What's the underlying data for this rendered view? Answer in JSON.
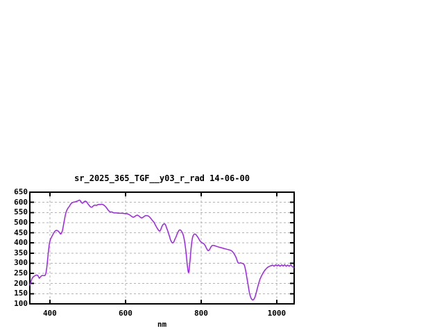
{
  "window": {
    "background": "#ffffff"
  },
  "chart_data": {
    "type": "line",
    "title": "sr_2025_365_TGF__y03_r_rad 14-06-00",
    "xlabel": "nm",
    "ylabel": "",
    "legend": "none",
    "grid": true,
    "xlim": [
      347,
      1046
    ],
    "ylim": [
      100,
      650
    ],
    "x_ticks": [
      400,
      600,
      800,
      1000
    ],
    "y_ticks": [
      100,
      150,
      200,
      250,
      300,
      350,
      400,
      450,
      500,
      550,
      600,
      650
    ],
    "line_color": "#a020f0",
    "grid_color": "#b3b3b3",
    "border_color": "#000000",
    "series": [
      {
        "name": "radiance-spectrum",
        "points": [
          [
            347,
            193
          ],
          [
            349,
            203
          ],
          [
            351,
            216
          ],
          [
            353,
            226
          ],
          [
            356,
            233
          ],
          [
            359,
            237
          ],
          [
            362,
            240
          ],
          [
            365,
            242
          ],
          [
            368,
            240
          ],
          [
            370,
            234
          ],
          [
            372,
            226
          ],
          [
            374,
            230
          ],
          [
            377,
            237
          ],
          [
            380,
            240
          ],
          [
            383,
            239
          ],
          [
            386,
            239
          ],
          [
            388,
            242
          ],
          [
            390,
            255
          ],
          [
            392,
            280
          ],
          [
            394,
            318
          ],
          [
            396,
            355
          ],
          [
            398,
            388
          ],
          [
            400,
            408
          ],
          [
            402,
            420
          ],
          [
            405,
            431
          ],
          [
            408,
            441
          ],
          [
            411,
            452
          ],
          [
            414,
            459
          ],
          [
            417,
            462
          ],
          [
            420,
            461
          ],
          [
            423,
            457
          ],
          [
            426,
            449
          ],
          [
            428,
            444
          ],
          [
            430,
            446
          ],
          [
            433,
            459
          ],
          [
            435,
            478
          ],
          [
            437,
            500
          ],
          [
            439,
            517
          ],
          [
            441,
            538
          ],
          [
            443,
            552
          ],
          [
            445,
            562
          ],
          [
            448,
            572
          ],
          [
            451,
            579
          ],
          [
            454,
            588
          ],
          [
            457,
            596
          ],
          [
            460,
            599
          ],
          [
            463,
            601
          ],
          [
            466,
            602
          ],
          [
            469,
            604
          ],
          [
            472,
            606
          ],
          [
            475,
            608
          ],
          [
            478,
            611
          ],
          [
            480,
            609
          ],
          [
            482,
            604
          ],
          [
            484,
            598
          ],
          [
            486,
            595
          ],
          [
            489,
            600
          ],
          [
            492,
            605
          ],
          [
            494,
            606
          ],
          [
            497,
            603
          ],
          [
            500,
            594
          ],
          [
            503,
            587
          ],
          [
            506,
            580
          ],
          [
            509,
            576
          ],
          [
            512,
            577
          ],
          [
            515,
            583
          ],
          [
            518,
            586
          ],
          [
            521,
            586
          ],
          [
            524,
            585
          ],
          [
            527,
            589
          ],
          [
            530,
            590
          ],
          [
            533,
            589
          ],
          [
            536,
            591
          ],
          [
            539,
            590
          ],
          [
            542,
            587
          ],
          [
            545,
            583
          ],
          [
            548,
            577
          ],
          [
            551,
            570
          ],
          [
            554,
            562
          ],
          [
            557,
            556
          ],
          [
            560,
            552
          ],
          [
            563,
            553
          ],
          [
            566,
            551
          ],
          [
            569,
            548
          ],
          [
            572,
            548
          ],
          [
            576,
            548
          ],
          [
            580,
            547
          ],
          [
            584,
            546
          ],
          [
            588,
            546
          ],
          [
            592,
            546
          ],
          [
            596,
            545
          ],
          [
            600,
            545
          ],
          [
            604,
            544
          ],
          [
            608,
            541
          ],
          [
            612,
            537
          ],
          [
            616,
            531
          ],
          [
            619,
            527
          ],
          [
            622,
            527
          ],
          [
            625,
            531
          ],
          [
            628,
            535
          ],
          [
            631,
            537
          ],
          [
            634,
            535
          ],
          [
            637,
            530
          ],
          [
            640,
            525
          ],
          [
            643,
            523
          ],
          [
            646,
            526
          ],
          [
            649,
            530
          ],
          [
            652,
            534
          ],
          [
            655,
            535
          ],
          [
            658,
            534
          ],
          [
            661,
            532
          ],
          [
            664,
            527
          ],
          [
            667,
            521
          ],
          [
            670,
            513
          ],
          [
            673,
            507
          ],
          [
            676,
            500
          ],
          [
            679,
            488
          ],
          [
            682,
            478
          ],
          [
            685,
            469
          ],
          [
            688,
            461
          ],
          [
            691,
            458
          ],
          [
            693,
            465
          ],
          [
            695,
            475
          ],
          [
            697,
            484
          ],
          [
            699,
            490
          ],
          [
            701,
            493
          ],
          [
            703,
            495
          ],
          [
            705,
            492
          ],
          [
            707,
            484
          ],
          [
            709,
            472
          ],
          [
            711,
            463
          ],
          [
            713,
            452
          ],
          [
            715,
            440
          ],
          [
            717,
            428
          ],
          [
            719,
            415
          ],
          [
            721,
            407
          ],
          [
            723,
            402
          ],
          [
            725,
            400
          ],
          [
            727,
            403
          ],
          [
            729,
            410
          ],
          [
            731,
            420
          ],
          [
            733,
            427
          ],
          [
            735,
            437
          ],
          [
            737,
            446
          ],
          [
            739,
            455
          ],
          [
            741,
            461
          ],
          [
            743,
            464
          ],
          [
            745,
            464
          ],
          [
            747,
            461
          ],
          [
            749,
            455
          ],
          [
            751,
            448
          ],
          [
            753,
            437
          ],
          [
            755,
            420
          ],
          [
            757,
            398
          ],
          [
            759,
            370
          ],
          [
            761,
            335
          ],
          [
            763,
            298
          ],
          [
            765,
            268
          ],
          [
            766,
            256
          ],
          [
            767,
            254
          ],
          [
            768,
            262
          ],
          [
            769,
            280
          ],
          [
            771,
            320
          ],
          [
            773,
            365
          ],
          [
            775,
            402
          ],
          [
            777,
            425
          ],
          [
            779,
            437
          ],
          [
            781,
            442
          ],
          [
            783,
            444
          ],
          [
            785,
            443
          ],
          [
            787,
            440
          ],
          [
            789,
            434
          ],
          [
            791,
            429
          ],
          [
            793,
            423
          ],
          [
            795,
            416
          ],
          [
            797,
            410
          ],
          [
            799,
            406
          ],
          [
            801,
            403
          ],
          [
            803,
            400
          ],
          [
            805,
            399
          ],
          [
            807,
            396
          ],
          [
            809,
            392
          ],
          [
            811,
            386
          ],
          [
            813,
            378
          ],
          [
            815,
            371
          ],
          [
            817,
            364
          ],
          [
            819,
            362
          ],
          [
            821,
            364
          ],
          [
            823,
            370
          ],
          [
            825,
            377
          ],
          [
            827,
            383
          ],
          [
            829,
            387
          ],
          [
            831,
            388
          ],
          [
            833,
            388
          ],
          [
            835,
            387
          ],
          [
            838,
            385
          ],
          [
            841,
            383
          ],
          [
            844,
            381
          ],
          [
            848,
            379
          ],
          [
            852,
            377
          ],
          [
            856,
            375
          ],
          [
            860,
            373
          ],
          [
            864,
            371
          ],
          [
            868,
            369
          ],
          [
            872,
            367
          ],
          [
            876,
            365
          ],
          [
            880,
            362
          ],
          [
            883,
            357
          ],
          [
            886,
            350
          ],
          [
            889,
            341
          ],
          [
            892,
            330
          ],
          [
            894,
            320
          ],
          [
            896,
            309
          ],
          [
            898,
            302
          ],
          [
            900,
            300
          ],
          [
            902,
            301
          ],
          [
            904,
            302
          ],
          [
            906,
            301
          ],
          [
            908,
            300
          ],
          [
            910,
            299
          ],
          [
            912,
            296
          ],
          [
            914,
            292
          ],
          [
            916,
            280
          ],
          [
            918,
            262
          ],
          [
            920,
            240
          ],
          [
            922,
            218
          ],
          [
            924,
            196
          ],
          [
            926,
            172
          ],
          [
            928,
            152
          ],
          [
            930,
            138
          ],
          [
            932,
            128
          ],
          [
            934,
            122
          ],
          [
            936,
            119
          ],
          [
            938,
            120
          ],
          [
            940,
            124
          ],
          [
            942,
            131
          ],
          [
            944,
            143
          ],
          [
            946,
            157
          ],
          [
            948,
            172
          ],
          [
            950,
            186
          ],
          [
            952,
            200
          ],
          [
            954,
            212
          ],
          [
            956,
            223
          ],
          [
            958,
            231
          ],
          [
            960,
            239
          ],
          [
            962,
            246
          ],
          [
            964,
            253
          ],
          [
            966,
            259
          ],
          [
            968,
            264
          ],
          [
            970,
            269
          ],
          [
            972,
            273
          ],
          [
            974,
            277
          ],
          [
            976,
            280
          ],
          [
            978,
            282
          ],
          [
            980,
            284
          ],
          [
            982,
            286
          ],
          [
            984,
            288
          ],
          [
            985,
            287
          ],
          [
            987,
            290
          ],
          [
            989,
            291
          ],
          [
            991,
            288
          ],
          [
            993,
            285
          ],
          [
            995,
            289
          ],
          [
            997,
            292
          ],
          [
            999,
            290
          ],
          [
            1001,
            287
          ],
          [
            1003,
            290
          ],
          [
            1005,
            292
          ],
          [
            1007,
            288
          ],
          [
            1009,
            285
          ],
          [
            1011,
            289
          ],
          [
            1013,
            292
          ],
          [
            1015,
            290
          ],
          [
            1017,
            286
          ],
          [
            1019,
            290
          ],
          [
            1021,
            293
          ],
          [
            1023,
            289
          ],
          [
            1025,
            285
          ],
          [
            1027,
            288
          ],
          [
            1029,
            291
          ],
          [
            1031,
            288
          ],
          [
            1033,
            285
          ],
          [
            1035,
            289
          ],
          [
            1037,
            292
          ],
          [
            1039,
            288
          ],
          [
            1041,
            284
          ],
          [
            1043,
            281
          ],
          [
            1045,
            279
          ]
        ]
      }
    ]
  }
}
